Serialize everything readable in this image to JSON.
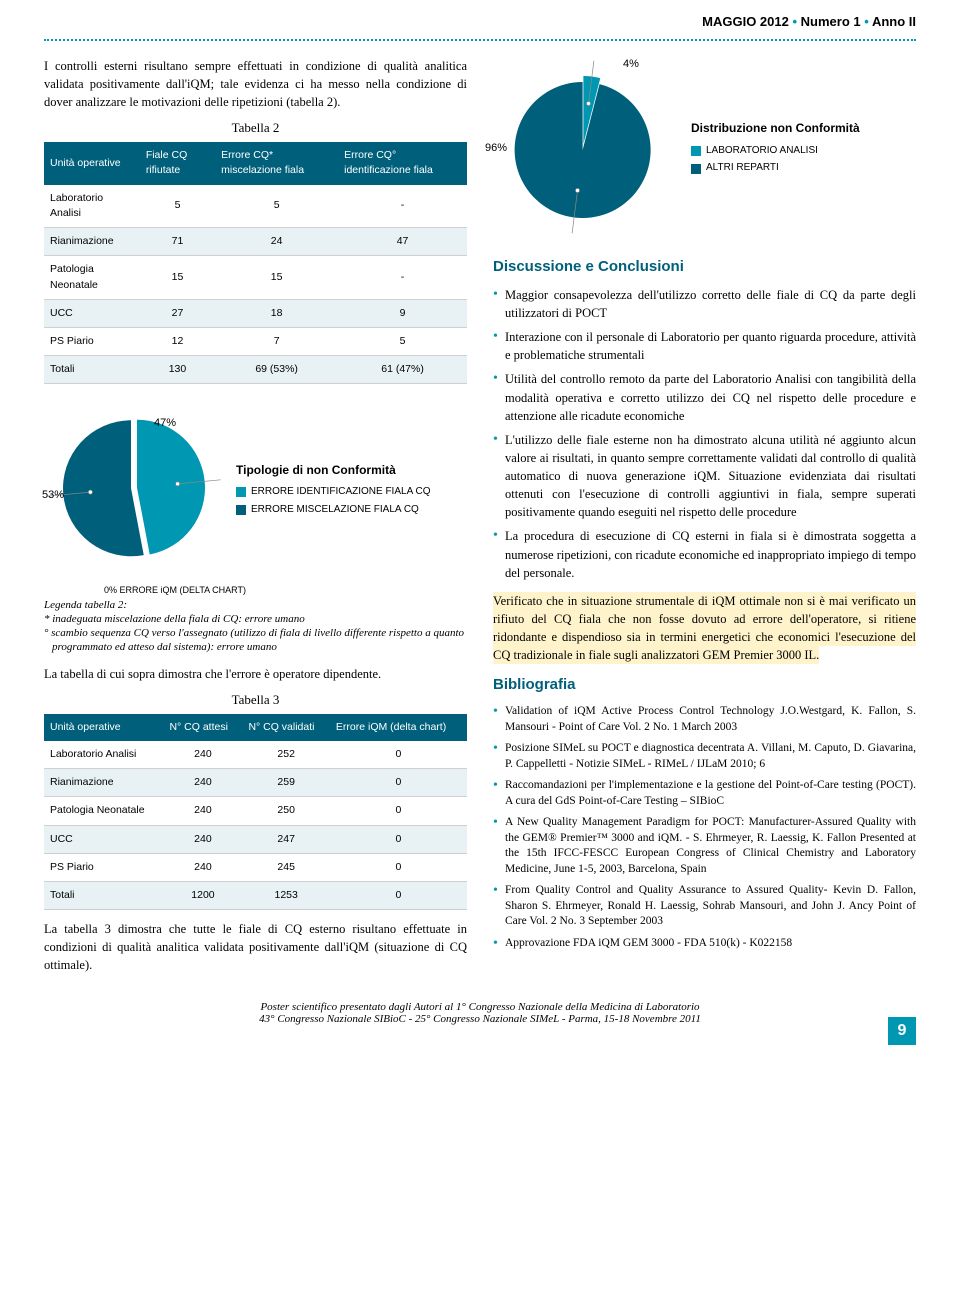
{
  "header": {
    "issue": "MAGGIO 2012",
    "dot": "•",
    "number": "Numero 1",
    "year": "Anno II"
  },
  "left": {
    "intro": "I controlli esterni risultano sempre effettuati in condizione di qualità analitica validata positivamente dall'iQM; tale evidenza ci ha messo nella condizione di dover analizzare le motivazioni delle ripetizioni (tabella 2)."
  },
  "table2": {
    "caption": "Tabella 2",
    "headers": [
      "Unità operative",
      "Fiale CQ rifiutate",
      "Errore CQ* miscelazione fiala",
      "Errore CQ° identificazione fiala"
    ],
    "rows": [
      [
        "Laboratorio Analisi",
        "5",
        "5",
        "-"
      ],
      [
        "Rianimazione",
        "71",
        "24",
        "47"
      ],
      [
        "Patologia Neonatale",
        "15",
        "15",
        "-"
      ],
      [
        "UCC",
        "27",
        "18",
        "9"
      ],
      [
        "PS Piario",
        "12",
        "7",
        "5"
      ],
      [
        "Totali",
        "130",
        "69 (53%)",
        "61 (47%)"
      ]
    ],
    "header_bg": "#005f7a",
    "alt_bg": "#e8f2f5"
  },
  "pie1": {
    "slices": [
      {
        "label": "47%",
        "value": 47,
        "color": "#0097b2"
      },
      {
        "label": "53%",
        "value": 53,
        "color": "#005f7a"
      }
    ],
    "zero_label": "0% ERRORE iQM (DELTA CHART)",
    "legend_title": "Tipologie di non Conformità",
    "legend": [
      {
        "color": "#0097b2",
        "label": "ERRORE IDENTIFICAZIONE FIALA CQ"
      },
      {
        "color": "#005f7a",
        "label": "ERRORE MISCELAZIONE FIALA CQ"
      }
    ]
  },
  "legend2": {
    "title": "Legenda tabella 2:",
    "l1": "* inadeguata miscelazione della fiala di CQ: errore umano",
    "l2": "° scambio sequenza CQ verso l'assegnato (utilizzo di fiala di livello differente rispetto a quanto programmato ed atteso dal sistema): errore umano"
  },
  "note_after_t2": "La tabella di cui sopra dimostra che l'errore è operatore dipendente.",
  "table3": {
    "caption": "Tabella 3",
    "headers": [
      "Unità operative",
      "N° CQ attesi",
      "N° CQ validati",
      "Errore iQM (delta chart)"
    ],
    "rows": [
      [
        "Laboratorio Analisi",
        "240",
        "252",
        "0"
      ],
      [
        "Rianimazione",
        "240",
        "259",
        "0"
      ],
      [
        "Patologia Neonatale",
        "240",
        "250",
        "0"
      ],
      [
        "UCC",
        "240",
        "247",
        "0"
      ],
      [
        "PS Piario",
        "240",
        "245",
        "0"
      ],
      [
        "Totali",
        "1200",
        "1253",
        "0"
      ]
    ]
  },
  "note_after_t3": "La tabella 3 dimostra che tutte le fiale di CQ esterno risultano effettuate in condizioni di qualità analitica validata positivamente dall'iQM (situazione di CQ ottimale).",
  "pie2": {
    "slices": [
      {
        "label": "96%",
        "value": 96,
        "color": "#005f7a"
      },
      {
        "label": "4%",
        "value": 4,
        "color": "#0097b2"
      }
    ],
    "legend_title": "Distribuzione non Conformità",
    "legend": [
      {
        "color": "#0097b2",
        "label": "LABORATORIO ANALISI"
      },
      {
        "color": "#005f7a",
        "label": "ALTRI REPARTI"
      }
    ]
  },
  "discussion": {
    "title": "Discussione e Conclusioni",
    "items": [
      "Maggior consapevolezza dell'utilizzo corretto delle fiale di CQ da parte degli utilizzatori di POCT",
      "Interazione con il personale di Laboratorio per quanto riguarda procedure, attività e problematiche strumentali",
      "Utilità del controllo remoto da parte del Laboratorio Analisi con tangibilità della modalità operativa e corretto utilizzo dei CQ nel rispetto delle procedure e attenzione alle ricadute economiche",
      "L'utilizzo delle fiale esterne non ha dimostrato alcuna utilità né aggiunto alcun valore ai risultati, in quanto sempre correttamente validati dal controllo di qualità automatico di nuova generazione iQM. Situazione evidenziata dai risultati ottenuti con l'esecuzione di controlli aggiuntivi in fiala, sempre superati positivamente quando eseguiti nel rispetto delle procedure",
      "La procedura di esecuzione di CQ esterni in fiala si è dimostrata soggetta a numerose ripetizioni, con ricadute economiche ed inappropriato impiego di tempo del personale."
    ],
    "highlight": "Verificato che in situazione strumentale di iQM ottimale non si è mai verificato un rifiuto del CQ fiala che non fosse dovuto ad errore dell'operatore, si ritiene ridondante e dispendioso sia in termini energetici che economici l'esecuzione del CQ tradizionale in fiale sugli analizzatori GEM Premier 3000 IL."
  },
  "bibliography": {
    "title": "Bibliografia",
    "items": [
      "Validation of iQM Active Process Control Technology J.O.Westgard, K. Fallon, S. Mansouri - Point of Care Vol. 2 No. 1 March 2003",
      "Posizione SIMeL su POCT e diagnostica decentrata A. Villani, M. Caputo, D. Giavarina, P. Cappelletti - Notizie SIMeL - RIMeL / IJLaM 2010; 6",
      "Raccomandazioni per l'implementazione e la gestione del Point-of-Care testing (POCT). A cura del GdS Point-of-Care Testing – SIBioC",
      "A New Quality Management Paradigm for POCT: Manufacturer-Assured Quality with the GEM® Premier™ 3000 and iQM. - S. Ehrmeyer, R. Laessig, K. Fallon Presented at the 15th IFCC-FESCC European Congress of Clinical Chemistry and Laboratory Medicine, June 1-5, 2003, Barcelona, Spain",
      "From Quality Control and Quality Assurance to Assured Quality- Kevin D. Fallon, Sharon S. Ehrmeyer, Ronald H. Laessig, Sohrab Mansouri, and John J. Ancy Point of Care Vol. 2 No. 3 September 2003",
      "Approvazione FDA iQM GEM 3000 - FDA 510(k) - K022158"
    ]
  },
  "poster_footer": {
    "l1": "Poster scientifico presentato dagli Autori al 1° Congresso Nazionale della Medicina di Laboratorio",
    "l2": "43° Congresso Nazionale SIBioC - 25° Congresso Nazionale SIMeL - Parma, 15-18 Novembre 2011"
  },
  "page_num": "9"
}
